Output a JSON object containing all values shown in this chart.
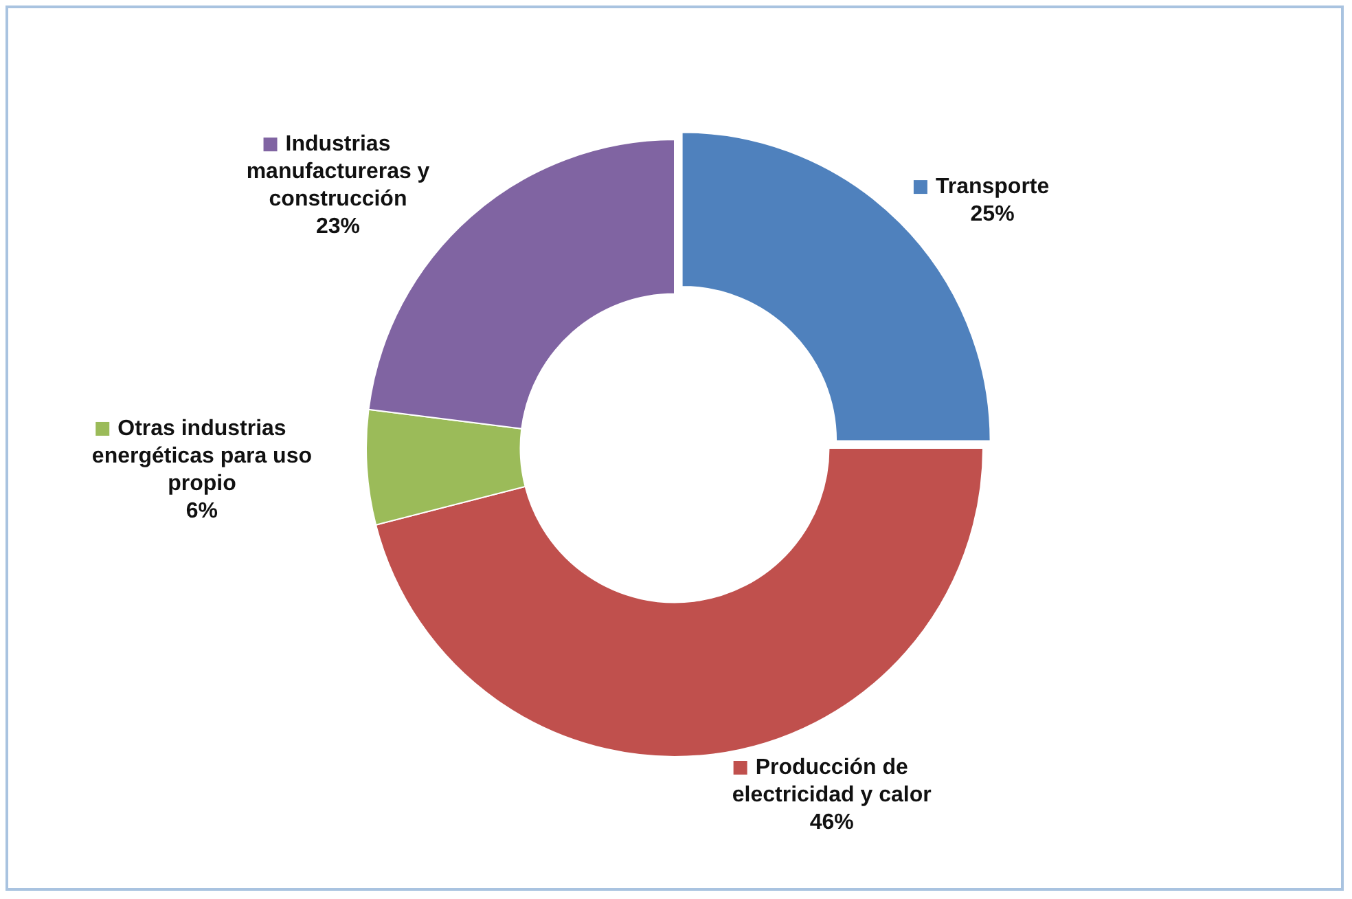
{
  "chart_data": {
    "type": "donut",
    "categories": [
      "Transporte",
      "Producción de electricidad y calor",
      "Otras industrias energéticas para uso propio",
      "Industrias manufactureras y construcción"
    ],
    "values": [
      25,
      46,
      6,
      23
    ],
    "colors": [
      "#4f81bd",
      "#c0504d",
      "#9bbb59",
      "#8064a2"
    ],
    "value_labels": [
      "25%",
      "46%",
      "6%",
      "23%"
    ],
    "legend": "bottom left"
  }
}
